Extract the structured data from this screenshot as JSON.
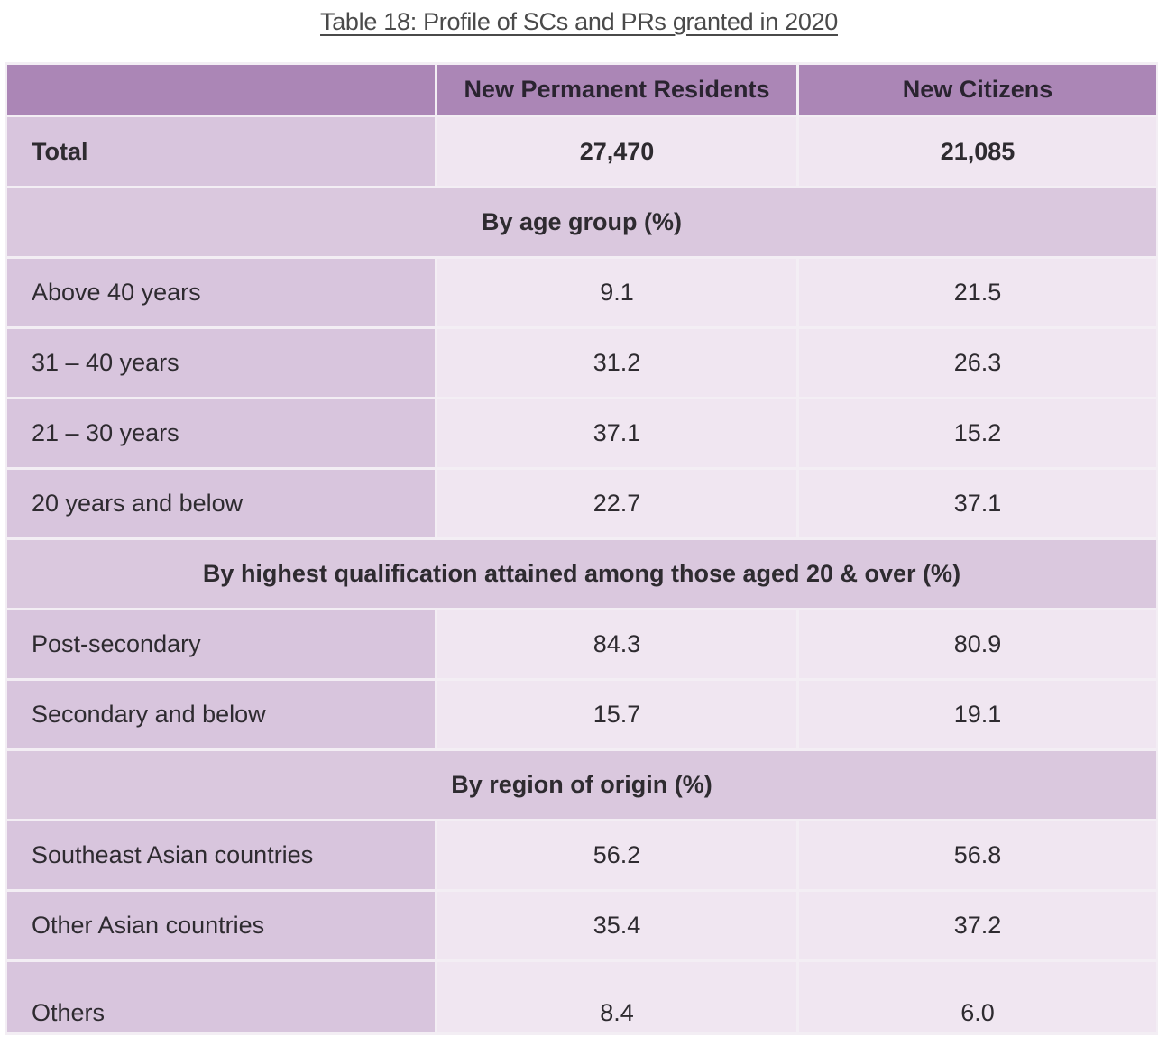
{
  "title": "Table 18: Profile of SCs and PRs granted in 2020",
  "header": {
    "col1": "",
    "col2": "New Permanent Residents",
    "col3": "New Citizens"
  },
  "total": {
    "label": "Total",
    "pr": "27,470",
    "sc": "21,085"
  },
  "sections": [
    {
      "heading": "By age group (%)",
      "rows": [
        {
          "label": "Above 40 years",
          "pr": "9.1",
          "sc": "21.5"
        },
        {
          "label": "31 – 40 years",
          "pr": "31.2",
          "sc": "26.3"
        },
        {
          "label": "21 – 30 years",
          "pr": "37.1",
          "sc": "15.2"
        },
        {
          "label": "20 years and below",
          "pr": "22.7",
          "sc": "37.1"
        }
      ]
    },
    {
      "heading": "By highest qualification attained among those aged 20 & over (%)",
      "rows": [
        {
          "label": "Post-secondary",
          "pr": "84.3",
          "sc": "80.9"
        },
        {
          "label": "Secondary and below",
          "pr": "15.7",
          "sc": "19.1"
        }
      ]
    },
    {
      "heading": "By region of origin (%)",
      "rows": [
        {
          "label": "Southeast Asian countries",
          "pr": "56.2",
          "sc": "56.8"
        },
        {
          "label": "Other Asian countries",
          "pr": "35.4",
          "sc": "37.2"
        },
        {
          "label": "Others",
          "pr": "8.4",
          "sc": "6.0"
        }
      ]
    }
  ],
  "colors": {
    "header_bg": "#ab86b6",
    "label_bg": "#d8c5dd",
    "value_bg": "#f0e6f1",
    "section_bg": "#dac8de"
  }
}
